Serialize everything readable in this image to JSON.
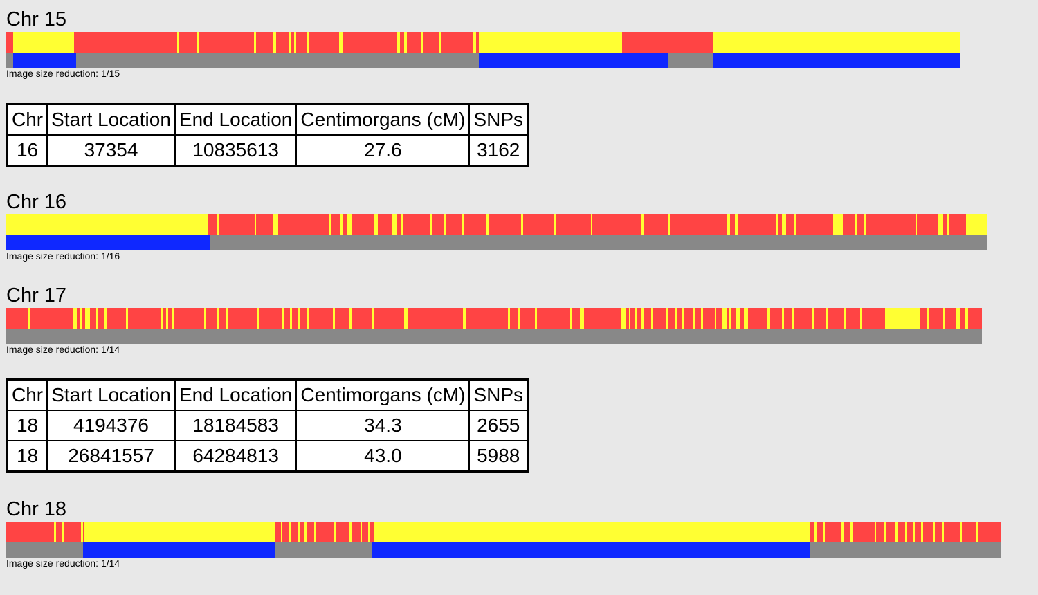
{
  "colors": {
    "background": "#e8e8e8",
    "mismatch": "#ff4444",
    "half_match": "#ffff33",
    "full_match": "#ff4444",
    "no_match_bar": "#888888",
    "match_bar": "#0f28ff"
  },
  "table_headers": [
    "Chr",
    "Start Location",
    "End Location",
    "Centimorgans (cM)",
    "SNPs"
  ],
  "chromosomes": [
    {
      "title": "Chr 15",
      "note": "Image size reduction: 1/15",
      "yellow_ranges": [
        [
          0.7,
          0.9
        ],
        [
          0.9,
          7.1
        ],
        [
          17.9,
          18.1
        ],
        [
          20.0,
          20.2
        ],
        [
          26.0,
          26.2
        ],
        [
          28.0,
          28.3
        ],
        [
          29.6,
          29.8
        ],
        [
          30.2,
          30.4
        ],
        [
          31.5,
          31.8
        ],
        [
          34.9,
          35.3
        ],
        [
          41.0,
          41.3
        ],
        [
          41.7,
          42.0
        ],
        [
          43.5,
          43.7
        ],
        [
          45.4,
          45.6
        ],
        [
          49.0,
          49.3
        ],
        [
          49.6,
          64.3
        ],
        [
          66.9,
          66.8
        ],
        [
          74.1,
          100.0
        ],
        [
          64.3,
          64.6
        ]
      ],
      "match_ranges": [
        [
          0.7,
          7.3
        ],
        [
          49.6,
          69.4
        ],
        [
          74.1,
          100.0
        ]
      ]
    },
    {
      "title": "Chr 16",
      "note": "Image size reduction: 1/16",
      "yellow_ranges": [
        [
          0,
          20.6
        ],
        [
          21.5,
          21.7
        ],
        [
          25.3,
          25.5
        ],
        [
          27.2,
          27.7
        ],
        [
          32.9,
          33.1
        ],
        [
          34.1,
          34.3
        ],
        [
          34.7,
          35.2
        ],
        [
          37.5,
          37.9
        ],
        [
          39.4,
          39.8
        ],
        [
          40.3,
          40.5
        ],
        [
          43.2,
          43.4
        ],
        [
          44.7,
          44.9
        ],
        [
          46.5,
          46.7
        ],
        [
          49.0,
          49.2
        ],
        [
          52.5,
          52.7
        ],
        [
          55.8,
          56.0
        ],
        [
          59.6,
          59.8
        ],
        [
          64.8,
          65.0
        ],
        [
          67.5,
          67.7
        ],
        [
          73.5,
          73.8
        ],
        [
          74.3,
          74.6
        ],
        [
          78.5,
          78.7
        ],
        [
          79.1,
          79.5
        ],
        [
          80.4,
          80.6
        ],
        [
          84.3,
          85.3
        ],
        [
          86.5,
          86.8
        ],
        [
          87.5,
          87.7
        ],
        [
          92.7,
          92.9
        ],
        [
          95.0,
          95.5
        ],
        [
          96.0,
          96.2
        ],
        [
          97.9,
          100.0
        ]
      ],
      "match_ranges": [
        [
          0,
          20.8
        ]
      ]
    },
    {
      "title": "Chr 17",
      "note": "Image size reduction: 1/14",
      "yellow_ranges": [
        [
          2.3,
          2.5
        ],
        [
          6.9,
          7.2
        ],
        [
          7.5,
          7.8
        ],
        [
          8.1,
          8.6
        ],
        [
          9.2,
          9.4
        ],
        [
          10.1,
          10.3
        ],
        [
          12.3,
          12.5
        ],
        [
          15.8,
          16.0
        ],
        [
          16.4,
          16.6
        ],
        [
          17.0,
          17.2
        ],
        [
          20.3,
          20.5
        ],
        [
          21.6,
          21.8
        ],
        [
          22.5,
          22.7
        ],
        [
          25.7,
          25.9
        ],
        [
          28.3,
          28.5
        ],
        [
          29.1,
          29.3
        ],
        [
          29.9,
          30.1
        ],
        [
          30.8,
          31.0
        ],
        [
          33.5,
          33.7
        ],
        [
          35.2,
          35.4
        ],
        [
          37.5,
          37.7
        ],
        [
          40.8,
          41.2
        ],
        [
          46.8,
          47.1
        ],
        [
          51.4,
          51.6
        ],
        [
          52.4,
          52.6
        ],
        [
          54.2,
          54.4
        ],
        [
          57.8,
          58.0
        ],
        [
          58.8,
          59.2
        ],
        [
          63.0,
          63.5
        ],
        [
          63.8,
          64.0
        ],
        [
          64.4,
          64.6
        ],
        [
          65.0,
          65.4
        ],
        [
          66.1,
          66.3
        ],
        [
          67.6,
          67.8
        ],
        [
          68.5,
          68.7
        ],
        [
          69.3,
          69.5
        ],
        [
          70.4,
          70.6
        ],
        [
          71.2,
          71.4
        ],
        [
          72.6,
          72.8
        ],
        [
          73.4,
          73.8
        ],
        [
          74.1,
          74.3
        ],
        [
          74.8,
          75.2
        ],
        [
          75.6,
          76.0
        ],
        [
          78.0,
          78.2
        ],
        [
          79.5,
          79.7
        ],
        [
          80.5,
          80.7
        ],
        [
          82.6,
          82.8
        ],
        [
          84.0,
          84.2
        ],
        [
          85.9,
          86.1
        ],
        [
          87.5,
          87.7
        ],
        [
          90.1,
          93.7
        ],
        [
          94.4,
          94.6
        ],
        [
          96.0,
          96.2
        ],
        [
          97.4,
          97.8
        ],
        [
          98.2,
          98.6
        ]
      ],
      "match_ranges": []
    },
    {
      "title": "Chr 18",
      "note": "Image size reduction: 1/14",
      "yellow_ranges": [
        [
          4.8,
          5.0
        ],
        [
          5.6,
          5.8
        ],
        [
          7.5,
          7.7
        ],
        [
          7.8,
          27.1
        ],
        [
          27.6,
          27.8
        ],
        [
          28.4,
          28.6
        ],
        [
          29.3,
          29.5
        ],
        [
          30.0,
          30.2
        ],
        [
          31.0,
          31.2
        ],
        [
          33.0,
          33.2
        ],
        [
          34.5,
          34.7
        ],
        [
          35.6,
          35.8
        ],
        [
          36.4,
          36.6
        ],
        [
          37.0,
          80.8
        ],
        [
          81.3,
          81.5
        ],
        [
          82.1,
          82.3
        ],
        [
          84.0,
          84.2
        ],
        [
          84.9,
          85.1
        ],
        [
          87.3,
          87.5
        ],
        [
          88.3,
          88.5
        ],
        [
          89.4,
          89.6
        ],
        [
          90.4,
          90.6
        ],
        [
          91.2,
          91.4
        ],
        [
          92.0,
          92.2
        ],
        [
          93.2,
          93.4
        ],
        [
          94.1,
          94.3
        ],
        [
          95.9,
          96.1
        ],
        [
          97.5,
          97.7
        ]
      ],
      "match_ranges": [
        [
          7.7,
          27.1
        ],
        [
          36.8,
          80.8
        ]
      ]
    }
  ],
  "tables": [
    {
      "rows": [
        [
          "16",
          "37354",
          "10835613",
          "27.6",
          "3162"
        ]
      ]
    },
    {
      "rows": [
        [
          "18",
          "4194376",
          "18184583",
          "34.3",
          "2655"
        ],
        [
          "18",
          "26841557",
          "64284813",
          "43.0",
          "5988"
        ]
      ]
    }
  ]
}
